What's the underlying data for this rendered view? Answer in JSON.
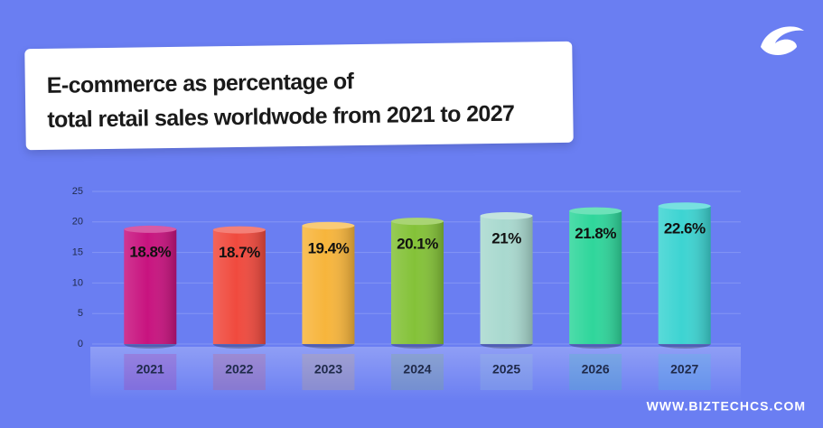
{
  "chart_data": {
    "type": "bar",
    "title": [
      "E-commerce as percentage of",
      "total retail sales worldwode from 2021 to 2027"
    ],
    "categories": [
      "2021",
      "2022",
      "2023",
      "2024",
      "2025",
      "2026",
      "2027"
    ],
    "values": [
      18.8,
      18.7,
      19.4,
      20.1,
      21,
      21.8,
      22.6
    ],
    "value_labels": [
      "18.8%",
      "18.7%",
      "19.4%",
      "20.1%",
      "21%",
      "21.8%",
      "22.6%"
    ],
    "colors": [
      "#c8137f",
      "#f04a3e",
      "#f7b53c",
      "#84c238",
      "#a9d9cf",
      "#2fd69b",
      "#3dd4d2"
    ],
    "ylim": [
      0,
      25
    ],
    "yticks": [
      0,
      5,
      10,
      15,
      20,
      25
    ],
    "grid": true,
    "footer": "WWW.BIZTECHCS.COM"
  }
}
